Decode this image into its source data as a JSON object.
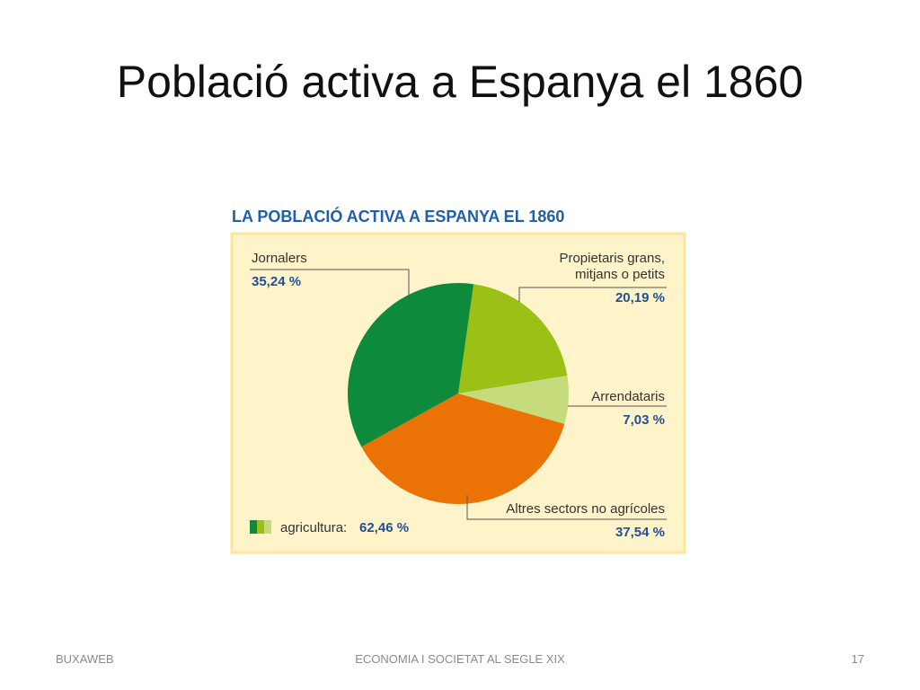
{
  "slide": {
    "title": "Població activa a Espanya el 1860"
  },
  "footer": {
    "left": "BUXAWEB",
    "center": "ECONOMIA I SOCIETAT AL SEGLE XIX",
    "page_number": "17"
  },
  "chart_data": {
    "type": "pie",
    "title": "LA POBLACIÓ ACTIVA A ESPANYA EL 1860",
    "unit": "%",
    "slices": [
      {
        "name": "Jornalers",
        "name_lines": [
          "Jornalers"
        ],
        "value": 35.24,
        "label": "35,24 %",
        "color": "#0e8a3c"
      },
      {
        "name": "Propietaris grans, mitjans o petits",
        "name_lines": [
          "Propietaris grans,",
          "mitjans o petits"
        ],
        "value": 20.19,
        "label": "20,19 %",
        "color": "#9bc016"
      },
      {
        "name": "Arrendataris",
        "name_lines": [
          "Arrendataris"
        ],
        "value": 7.03,
        "label": "7,03 %",
        "color": "#c6dc7c"
      },
      {
        "name": "Altres sectors no agrícoles",
        "name_lines": [
          "Altres sectors no agrícoles"
        ],
        "value": 37.54,
        "label": "37,54 %",
        "color": "#eb7205"
      }
    ],
    "legend": {
      "label": "agricultura:",
      "value": "62,46 %",
      "colors": [
        "#0e8a3c",
        "#9bc016",
        "#c6dc7c"
      ]
    },
    "colors": {
      "title": "#1f5ea8",
      "panel_background": "#fef3c9",
      "panel_border": "#fde59a",
      "label_text": "#333333",
      "value_text": "#1f4f9a",
      "leader_line": "#555555"
    }
  }
}
